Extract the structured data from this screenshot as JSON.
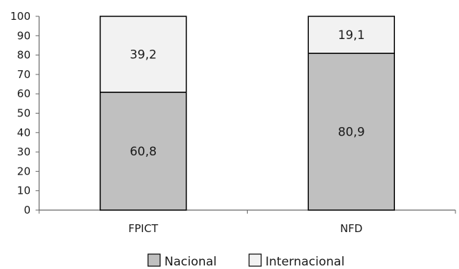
{
  "chart_data": {
    "type": "bar",
    "stacked": true,
    "categories": [
      "FPICT",
      "NFD"
    ],
    "series": [
      {
        "name": "Nacional",
        "values": [
          60.8,
          80.9
        ],
        "labels": [
          "60,8",
          "80,9"
        ],
        "color": "#c0c0c0"
      },
      {
        "name": "Internacional",
        "values": [
          39.2,
          19.1
        ],
        "labels": [
          "39,2",
          "19,1"
        ],
        "color": "#f2f2f2"
      }
    ],
    "ylim": [
      0,
      100
    ],
    "yticks": [
      0,
      10,
      20,
      30,
      40,
      50,
      60,
      70,
      80,
      90,
      100
    ],
    "ytick_labels": [
      "0",
      "10",
      "20",
      "30",
      "40",
      "50",
      "60",
      "70",
      "80",
      "90",
      "100"
    ],
    "grid": false,
    "legend": "bottom"
  }
}
